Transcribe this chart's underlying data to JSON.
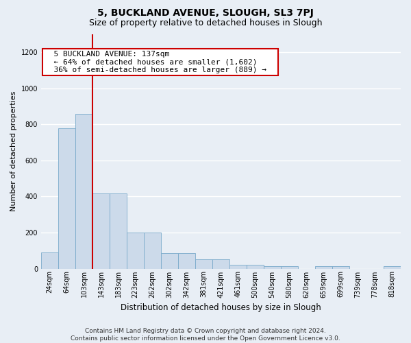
{
  "title1": "5, BUCKLAND AVENUE, SLOUGH, SL3 7PJ",
  "title2": "Size of property relative to detached houses in Slough",
  "xlabel": "Distribution of detached houses by size in Slough",
  "ylabel": "Number of detached properties",
  "bar_labels": [
    "24sqm",
    "64sqm",
    "103sqm",
    "143sqm",
    "183sqm",
    "223sqm",
    "262sqm",
    "302sqm",
    "342sqm",
    "381sqm",
    "421sqm",
    "461sqm",
    "500sqm",
    "540sqm",
    "580sqm",
    "620sqm",
    "659sqm",
    "699sqm",
    "739sqm",
    "778sqm",
    "818sqm"
  ],
  "bar_heights": [
    90,
    780,
    860,
    415,
    415,
    200,
    200,
    85,
    85,
    50,
    50,
    20,
    20,
    12,
    12,
    0,
    12,
    12,
    0,
    0,
    12
  ],
  "bar_color": "#ccdaea",
  "bar_edge_color": "#7aaaca",
  "vline_x": 2.5,
  "vline_color": "#cc0000",
  "ylim": [
    0,
    1300
  ],
  "yticks": [
    0,
    200,
    400,
    600,
    800,
    1000,
    1200
  ],
  "annotation_text": "  5 BUCKLAND AVENUE: 137sqm  \n  ← 64% of detached houses are smaller (1,602)  \n  36% of semi-detached houses are larger (889) →  ",
  "annotation_box_facecolor": "#ffffff",
  "annotation_box_edgecolor": "#cc0000",
  "footnote": "Contains HM Land Registry data © Crown copyright and database right 2024.\nContains public sector information licensed under the Open Government Licence v3.0.",
  "bg_color": "#e8eef5",
  "plot_bg_color": "#e8eef5",
  "grid_color": "#ffffff",
  "title1_fontsize": 10,
  "title2_fontsize": 9,
  "ylabel_fontsize": 8,
  "xlabel_fontsize": 8.5,
  "tick_fontsize": 7,
  "footnote_fontsize": 6.5,
  "ann_fontsize": 8
}
